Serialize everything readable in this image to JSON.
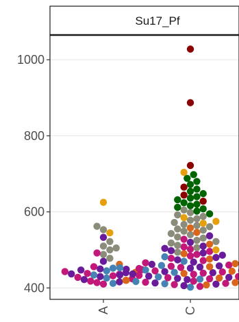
{
  "chart_data": {
    "type": "scatter",
    "subtype": "beeswarm",
    "facet_label": "Su17_Pf",
    "title": "",
    "xlabel": "",
    "ylabel": "",
    "categories": [
      "A",
      "C"
    ],
    "ylim": [
      370,
      1065
    ],
    "yticks": [
      400,
      600,
      800,
      1000
    ],
    "grid": "horizontal-major",
    "legend": "none",
    "palette": [
      "#8b0000",
      "#006400",
      "#e6a00f",
      "#8c8c7a",
      "#6a1b9a",
      "#c2187a",
      "#4682b4",
      "#d9661a"
    ],
    "groups": [
      {
        "category": "A",
        "points": [
          {
            "y": 625,
            "color": "#e6a00f"
          },
          {
            "y": 562,
            "color": "#8c8c7a"
          },
          {
            "y": 553,
            "color": "#8c8c7a"
          },
          {
            "y": 545,
            "color": "#e6a00f"
          },
          {
            "y": 533,
            "color": "#6a1b9a"
          },
          {
            "y": 522,
            "color": "#8c8c7a"
          },
          {
            "y": 510,
            "color": "#8c8c7a"
          },
          {
            "y": 505,
            "color": "#8c8c7a"
          },
          {
            "y": 500,
            "color": "#8c8c7a"
          },
          {
            "y": 492,
            "color": "#c2187a"
          },
          {
            "y": 488,
            "color": "#8c8c7a"
          },
          {
            "y": 478,
            "color": "#8c8c7a"
          },
          {
            "y": 470,
            "color": "#6a1b9a"
          },
          {
            "y": 462,
            "color": "#d9661a"
          },
          {
            "y": 456,
            "color": "#c2187a"
          },
          {
            "y": 452,
            "color": "#4682b4"
          },
          {
            "y": 450,
            "color": "#6a1b9a"
          },
          {
            "y": 448,
            "color": "#c2187a"
          },
          {
            "y": 447,
            "color": "#6a1b9a"
          },
          {
            "y": 445,
            "color": "#4682b4"
          },
          {
            "y": 443,
            "color": "#c2187a"
          },
          {
            "y": 441,
            "color": "#d9661a"
          },
          {
            "y": 440,
            "color": "#6a1b9a"
          },
          {
            "y": 438,
            "color": "#c2187a"
          },
          {
            "y": 437,
            "color": "#6a1b9a"
          },
          {
            "y": 436,
            "color": "#c2187a"
          },
          {
            "y": 434,
            "color": "#4682b4"
          },
          {
            "y": 432,
            "color": "#c2187a"
          },
          {
            "y": 430,
            "color": "#6a1b9a"
          },
          {
            "y": 428,
            "color": "#c2187a"
          },
          {
            "y": 426,
            "color": "#4682b4"
          },
          {
            "y": 424,
            "color": "#c2187a"
          },
          {
            "y": 422,
            "color": "#6a1b9a"
          },
          {
            "y": 420,
            "color": "#d9661a"
          },
          {
            "y": 418,
            "color": "#c2187a"
          },
          {
            "y": 416,
            "color": "#6a1b9a"
          },
          {
            "y": 414,
            "color": "#c2187a"
          },
          {
            "y": 412,
            "color": "#4682b4"
          },
          {
            "y": 410,
            "color": "#c2187a"
          }
        ]
      },
      {
        "category": "C",
        "points": [
          {
            "y": 1028,
            "color": "#8b0000"
          },
          {
            "y": 887,
            "color": "#8b0000"
          },
          {
            "y": 722,
            "color": "#8b0000"
          },
          {
            "y": 704,
            "color": "#e6a00f"
          },
          {
            "y": 698,
            "color": "#006400"
          },
          {
            "y": 688,
            "color": "#006400"
          },
          {
            "y": 680,
            "color": "#006400"
          },
          {
            "y": 672,
            "color": "#006400"
          },
          {
            "y": 665,
            "color": "#8b0000"
          },
          {
            "y": 660,
            "color": "#006400"
          },
          {
            "y": 654,
            "color": "#006400"
          },
          {
            "y": 648,
            "color": "#006400"
          },
          {
            "y": 644,
            "color": "#8b0000"
          },
          {
            "y": 640,
            "color": "#006400"
          },
          {
            "y": 636,
            "color": "#006400"
          },
          {
            "y": 632,
            "color": "#006400"
          },
          {
            "y": 628,
            "color": "#8b0000"
          },
          {
            "y": 624,
            "color": "#006400"
          },
          {
            "y": 620,
            "color": "#006400"
          },
          {
            "y": 616,
            "color": "#006400"
          },
          {
            "y": 612,
            "color": "#006400"
          },
          {
            "y": 608,
            "color": "#006400"
          },
          {
            "y": 605,
            "color": "#8c8c7a"
          },
          {
            "y": 602,
            "color": "#006400"
          },
          {
            "y": 598,
            "color": "#8c8c7a"
          },
          {
            "y": 595,
            "color": "#006400"
          },
          {
            "y": 592,
            "color": "#8c8c7a"
          },
          {
            "y": 588,
            "color": "#8c8c7a"
          },
          {
            "y": 585,
            "color": "#e6a00f"
          },
          {
            "y": 582,
            "color": "#8c8c7a"
          },
          {
            "y": 578,
            "color": "#8c8c7a"
          },
          {
            "y": 575,
            "color": "#e6a00f"
          },
          {
            "y": 572,
            "color": "#8c8c7a"
          },
          {
            "y": 570,
            "color": "#e6a00f"
          },
          {
            "y": 567,
            "color": "#8c8c7a"
          },
          {
            "y": 564,
            "color": "#8c8c7a"
          },
          {
            "y": 561,
            "color": "#8c8c7a"
          },
          {
            "y": 558,
            "color": "#d9661a"
          },
          {
            "y": 555,
            "color": "#8c8c7a"
          },
          {
            "y": 552,
            "color": "#8c8c7a"
          },
          {
            "y": 549,
            "color": "#8c8c7a"
          },
          {
            "y": 546,
            "color": "#d9661a"
          },
          {
            "y": 543,
            "color": "#8c8c7a"
          },
          {
            "y": 540,
            "color": "#8c8c7a"
          },
          {
            "y": 537,
            "color": "#6a1b9a"
          },
          {
            "y": 534,
            "color": "#8c8c7a"
          },
          {
            "y": 531,
            "color": "#8c8c7a"
          },
          {
            "y": 528,
            "color": "#c2187a"
          },
          {
            "y": 525,
            "color": "#8c8c7a"
          },
          {
            "y": 522,
            "color": "#8c8c7a"
          },
          {
            "y": 520,
            "color": "#6a1b9a"
          },
          {
            "y": 518,
            "color": "#8c8c7a"
          },
          {
            "y": 515,
            "color": "#d9661a"
          },
          {
            "y": 512,
            "color": "#8c8c7a"
          },
          {
            "y": 510,
            "color": "#6a1b9a"
          },
          {
            "y": 508,
            "color": "#c2187a"
          },
          {
            "y": 506,
            "color": "#8c8c7a"
          },
          {
            "y": 504,
            "color": "#6a1b9a"
          },
          {
            "y": 502,
            "color": "#c2187a"
          },
          {
            "y": 500,
            "color": "#e6a00f"
          },
          {
            "y": 498,
            "color": "#6a1b9a"
          },
          {
            "y": 496,
            "color": "#c2187a"
          },
          {
            "y": 494,
            "color": "#8c8c7a"
          },
          {
            "y": 492,
            "color": "#6a1b9a"
          },
          {
            "y": 490,
            "color": "#d9661a"
          },
          {
            "y": 488,
            "color": "#c2187a"
          },
          {
            "y": 486,
            "color": "#6a1b9a"
          },
          {
            "y": 484,
            "color": "#c2187a"
          },
          {
            "y": 482,
            "color": "#4682b4"
          },
          {
            "y": 480,
            "color": "#6a1b9a"
          },
          {
            "y": 478,
            "color": "#c2187a"
          },
          {
            "y": 476,
            "color": "#d9661a"
          },
          {
            "y": 474,
            "color": "#6a1b9a"
          },
          {
            "y": 472,
            "color": "#c2187a"
          },
          {
            "y": 470,
            "color": "#4682b4"
          },
          {
            "y": 468,
            "color": "#6a1b9a"
          },
          {
            "y": 466,
            "color": "#c2187a"
          },
          {
            "y": 464,
            "color": "#d9661a"
          },
          {
            "y": 462,
            "color": "#6a1b9a"
          },
          {
            "y": 460,
            "color": "#c2187a"
          },
          {
            "y": 459,
            "color": "#4682b4"
          },
          {
            "y": 458,
            "color": "#6a1b9a"
          },
          {
            "y": 457,
            "color": "#c2187a"
          },
          {
            "y": 456,
            "color": "#d9661a"
          },
          {
            "y": 455,
            "color": "#6a1b9a"
          },
          {
            "y": 454,
            "color": "#c2187a"
          },
          {
            "y": 453,
            "color": "#4682b4"
          },
          {
            "y": 452,
            "color": "#6a1b9a"
          },
          {
            "y": 451,
            "color": "#c2187a"
          },
          {
            "y": 450,
            "color": "#d9661a"
          },
          {
            "y": 449,
            "color": "#6a1b9a"
          },
          {
            "y": 448,
            "color": "#c2187a"
          },
          {
            "y": 447,
            "color": "#4682b4"
          },
          {
            "y": 446,
            "color": "#6a1b9a"
          },
          {
            "y": 445,
            "color": "#c2187a"
          },
          {
            "y": 444,
            "color": "#d9661a"
          },
          {
            "y": 443,
            "color": "#6a1b9a"
          },
          {
            "y": 442,
            "color": "#c2187a"
          },
          {
            "y": 441,
            "color": "#4682b4"
          },
          {
            "y": 440,
            "color": "#6a1b9a"
          },
          {
            "y": 439,
            "color": "#c2187a"
          },
          {
            "y": 438,
            "color": "#d9661a"
          },
          {
            "y": 437,
            "color": "#6a1b9a"
          },
          {
            "y": 436,
            "color": "#c2187a"
          },
          {
            "y": 435,
            "color": "#4682b4"
          },
          {
            "y": 434,
            "color": "#6a1b9a"
          },
          {
            "y": 433,
            "color": "#c2187a"
          },
          {
            "y": 432,
            "color": "#d9661a"
          },
          {
            "y": 431,
            "color": "#6a1b9a"
          },
          {
            "y": 430,
            "color": "#c2187a"
          },
          {
            "y": 429,
            "color": "#4682b4"
          },
          {
            "y": 428,
            "color": "#6a1b9a"
          },
          {
            "y": 427,
            "color": "#c2187a"
          },
          {
            "y": 426,
            "color": "#d9661a"
          },
          {
            "y": 425,
            "color": "#6a1b9a"
          },
          {
            "y": 424,
            "color": "#c2187a"
          },
          {
            "y": 423,
            "color": "#4682b4"
          },
          {
            "y": 422,
            "color": "#6a1b9a"
          },
          {
            "y": 421,
            "color": "#c2187a"
          },
          {
            "y": 420,
            "color": "#d9661a"
          },
          {
            "y": 419,
            "color": "#6a1b9a"
          },
          {
            "y": 418,
            "color": "#c2187a"
          },
          {
            "y": 417,
            "color": "#4682b4"
          },
          {
            "y": 416,
            "color": "#6a1b9a"
          },
          {
            "y": 415,
            "color": "#c2187a"
          },
          {
            "y": 414,
            "color": "#d9661a"
          },
          {
            "y": 413,
            "color": "#6a1b9a"
          },
          {
            "y": 412,
            "color": "#c2187a"
          },
          {
            "y": 411,
            "color": "#4682b4"
          },
          {
            "y": 410,
            "color": "#6a1b9a"
          },
          {
            "y": 409,
            "color": "#c2187a"
          },
          {
            "y": 408,
            "color": "#d9661a"
          },
          {
            "y": 406,
            "color": "#6a1b9a"
          },
          {
            "y": 404,
            "color": "#c2187a"
          },
          {
            "y": 402,
            "color": "#4682b4"
          }
        ]
      }
    ]
  }
}
